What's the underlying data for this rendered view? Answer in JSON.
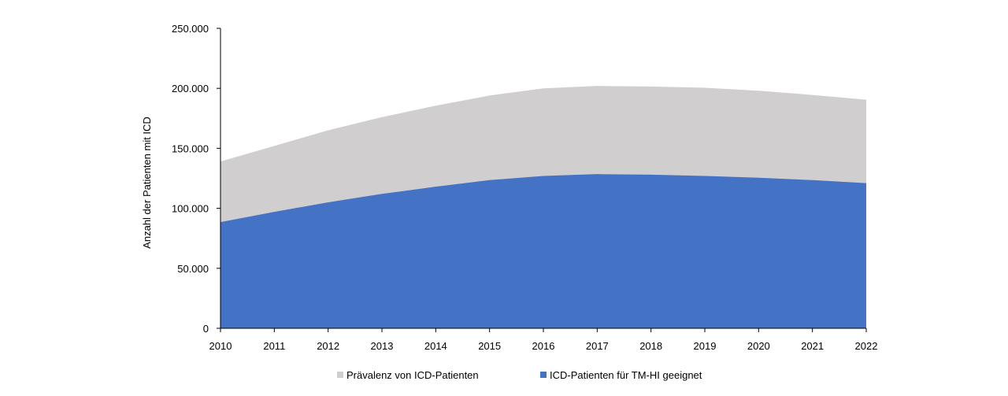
{
  "chart_data": {
    "type": "area",
    "stacked": false,
    "x": [
      2010,
      2011,
      2012,
      2013,
      2014,
      2015,
      2016,
      2017,
      2018,
      2019,
      2020,
      2021,
      2022
    ],
    "series": [
      {
        "name": "Prävalenz von ICD-Patienten",
        "color": "#d0cece",
        "values": [
          139000,
          152000,
          165000,
          176000,
          185500,
          194000,
          200000,
          202000,
          201500,
          200500,
          198000,
          194500,
          190500
        ]
      },
      {
        "name": "ICD-Patienten für TM-HI geeignet",
        "color": "#4472c4",
        "values": [
          88500,
          97000,
          105000,
          112000,
          118000,
          123500,
          127000,
          128500,
          128000,
          127000,
          125500,
          123500,
          121000
        ]
      }
    ],
    "ylabel": "Anzahl der Patienten mit ICD",
    "xlabel": "",
    "ylim": [
      0,
      250000
    ],
    "yticks": [
      "0",
      "50.000",
      "100.000",
      "150.000",
      "200.000",
      "250.000"
    ],
    "ytick_values": [
      0,
      50000,
      100000,
      150000,
      200000,
      250000
    ],
    "xticks": [
      "2010",
      "2011",
      "2012",
      "2013",
      "2014",
      "2015",
      "2016",
      "2017",
      "2018",
      "2019",
      "2020",
      "2021",
      "2022"
    ],
    "grid": false,
    "legend_position": "bottom"
  }
}
